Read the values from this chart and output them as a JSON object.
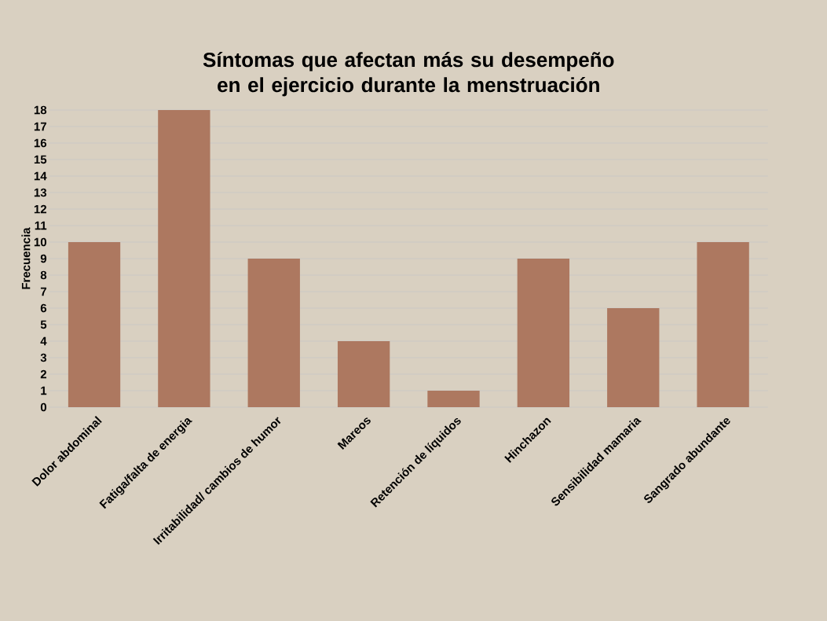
{
  "chart_data": {
    "type": "bar",
    "title": "Síntomas que afectan más su desempeño en el ejercicio durante la menstruación",
    "ylabel": "Frecuencia",
    "categories": [
      "Dolor abdominal",
      "Fatiga/falta de energia",
      "Irritabilidad/ cambios de humor",
      "Mareos",
      "Retención de líquidos",
      "Hinchazon",
      "Sensibilidad mamaria",
      "Sangrado abundante"
    ],
    "values": [
      10,
      18,
      9,
      4,
      1,
      9,
      6,
      10
    ],
    "color": "#ad7860",
    "ylim": [
      0,
      18
    ],
    "yticks": [
      0,
      1,
      2,
      3,
      4,
      5,
      6,
      7,
      8,
      9,
      10,
      11,
      12,
      13,
      14,
      15,
      16,
      17,
      18
    ],
    "grid": "y"
  }
}
